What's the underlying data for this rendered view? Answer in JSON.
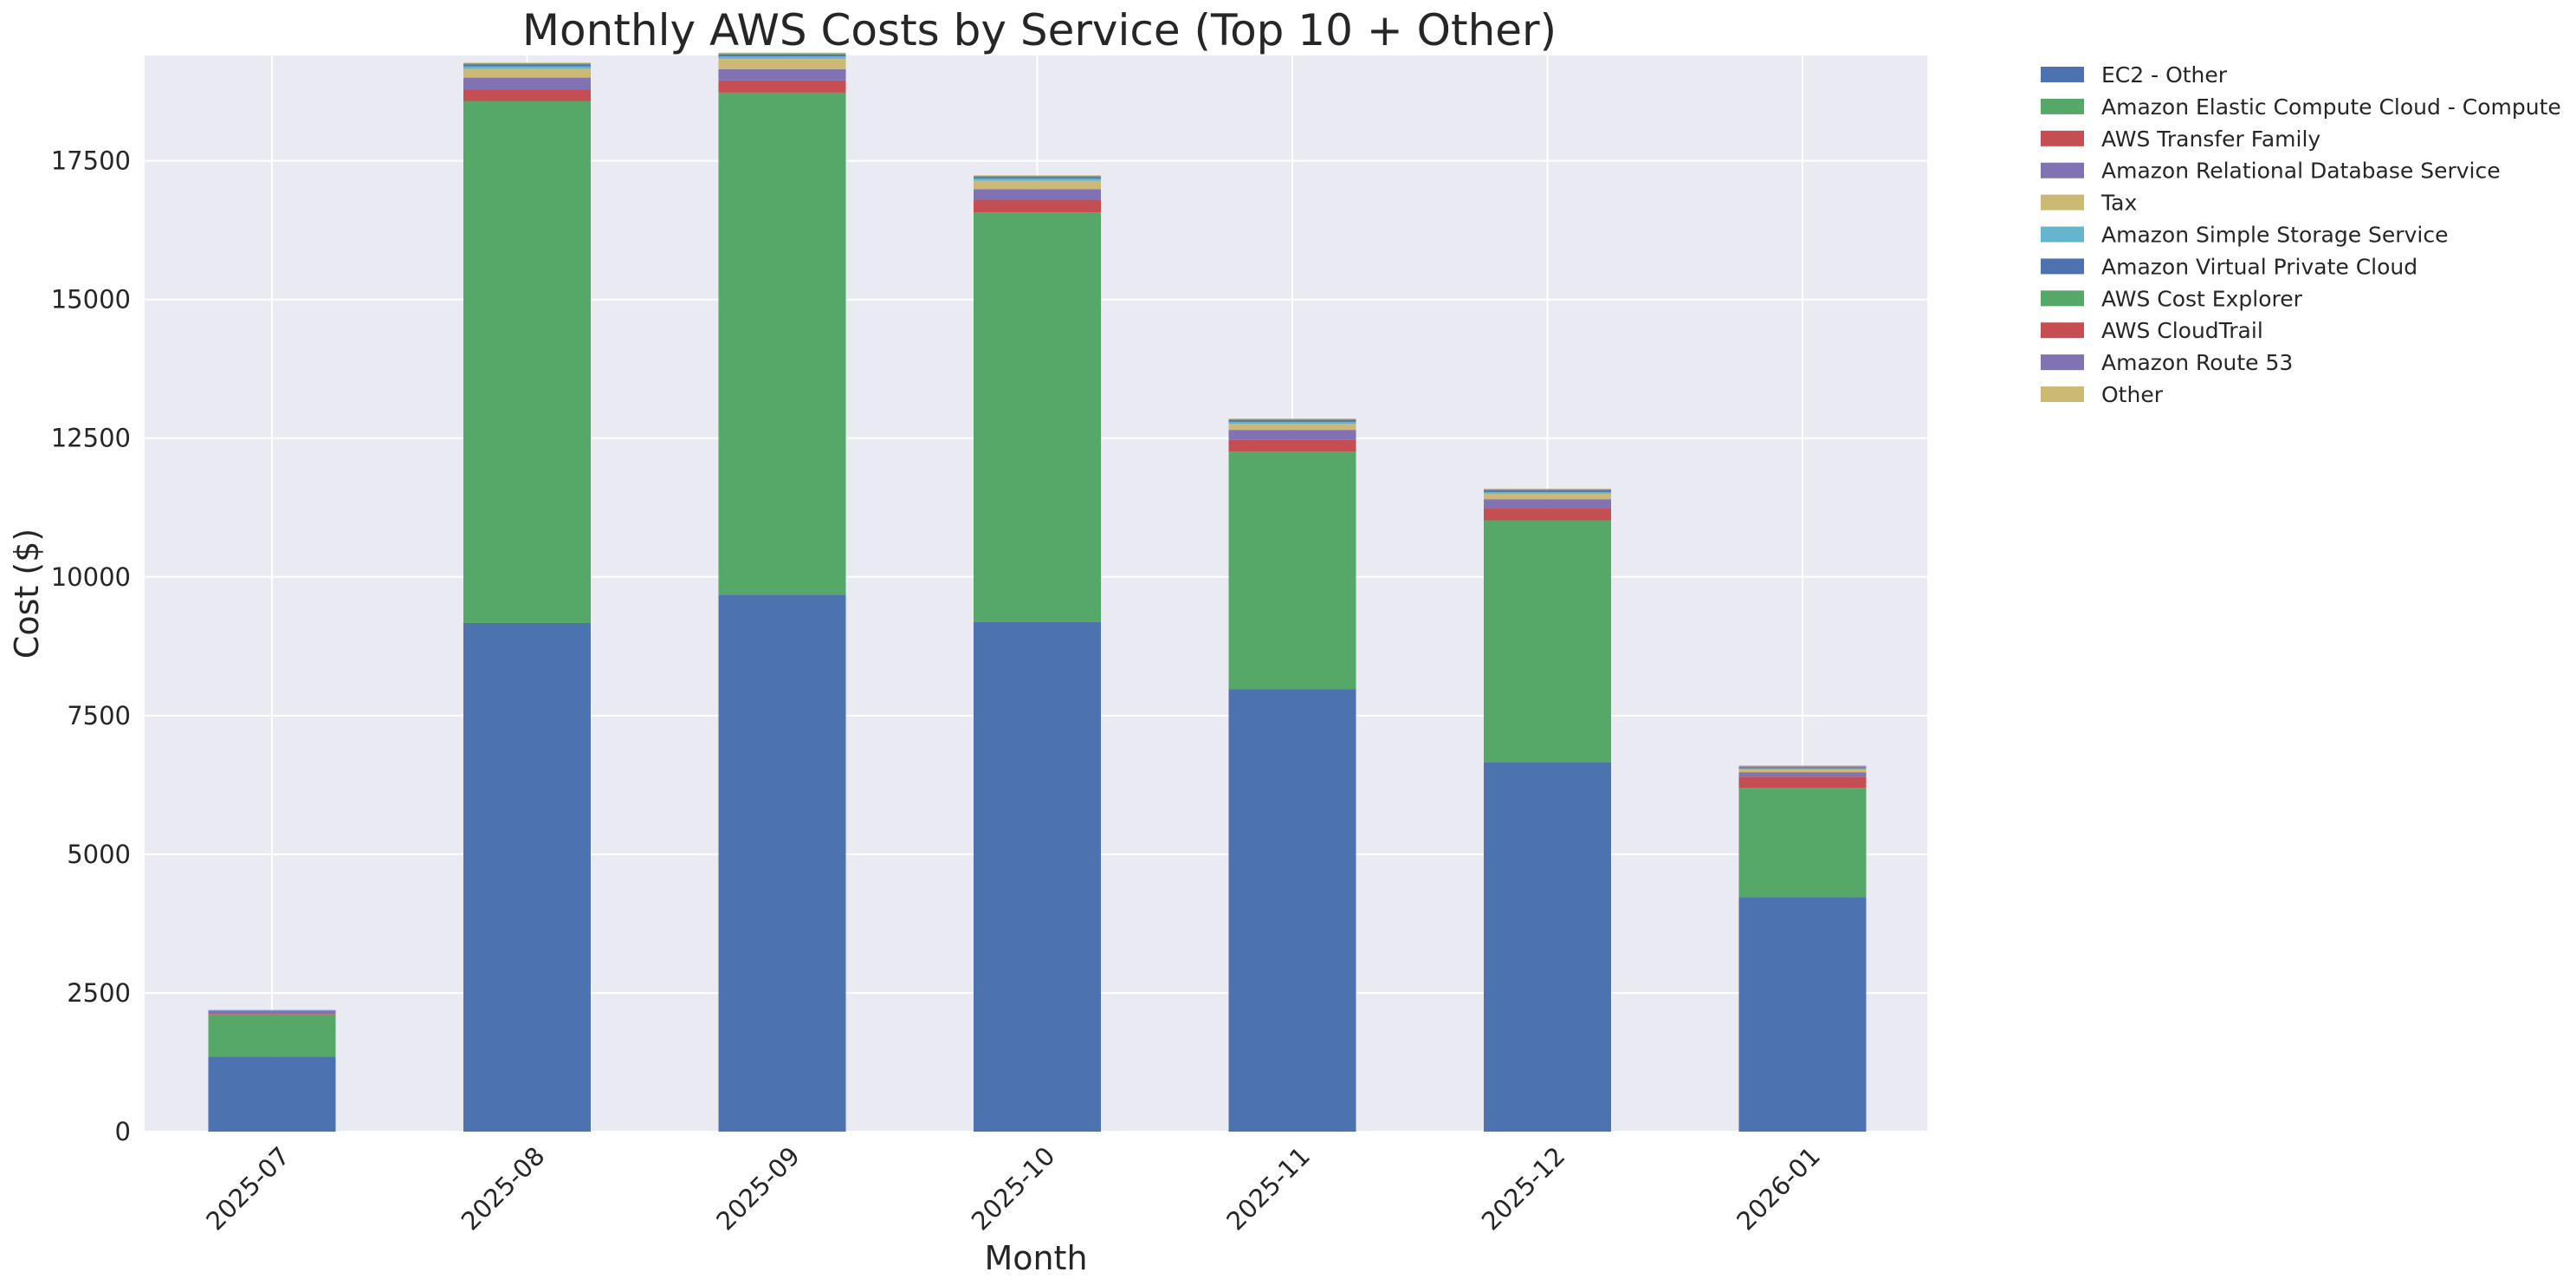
{
  "chart_data": {
    "type": "bar",
    "stacked": true,
    "title": "Monthly AWS Costs by Service (Top 10 + Other)",
    "xlabel": "Month",
    "ylabel": "Cost ($)",
    "ylim": [
      0,
      19400
    ],
    "yticks": [
      0,
      2500,
      5000,
      7500,
      10000,
      12500,
      15000,
      17500
    ],
    "grid": true,
    "legend_position": "outside-top-right",
    "background": "#eaeaf2",
    "categories": [
      "2025-07",
      "2025-08",
      "2025-09",
      "2025-10",
      "2025-11",
      "2025-12",
      "2026-01"
    ],
    "series": [
      {
        "name": "EC2 - Other",
        "color": "#4c72b0",
        "values": [
          1350,
          9170,
          9680,
          9190,
          7980,
          6660,
          4230
        ]
      },
      {
        "name": "Amazon Elastic Compute Cloud - Compute",
        "color": "#55a868",
        "values": [
          760,
          9410,
          9050,
          7380,
          4280,
          4360,
          1970
        ]
      },
      {
        "name": "AWS Transfer Family",
        "color": "#c44e52",
        "values": [
          10,
          210,
          220,
          230,
          210,
          220,
          200
        ]
      },
      {
        "name": "Amazon Relational Database Service",
        "color": "#8172b3",
        "values": [
          60,
          210,
          200,
          190,
          180,
          160,
          80
        ]
      },
      {
        "name": "Tax",
        "color": "#ccb974",
        "values": [
          0,
          160,
          190,
          150,
          110,
          100,
          50
        ]
      },
      {
        "name": "Amazon Simple Storage Service",
        "color": "#64b5cd",
        "values": [
          5,
          45,
          45,
          40,
          35,
          30,
          20
        ]
      },
      {
        "name": "Amazon Virtual Private Cloud",
        "color": "#4c72b0",
        "values": [
          5,
          35,
          35,
          30,
          30,
          30,
          20
        ]
      },
      {
        "name": "AWS Cost Explorer",
        "color": "#55a868",
        "values": [
          0,
          10,
          10,
          10,
          10,
          10,
          10
        ]
      },
      {
        "name": "AWS CloudTrail",
        "color": "#c44e52",
        "values": [
          0,
          5,
          5,
          5,
          5,
          5,
          5
        ]
      },
      {
        "name": "Amazon Route 53",
        "color": "#8172b3",
        "values": [
          2,
          5,
          5,
          5,
          5,
          5,
          5
        ]
      },
      {
        "name": "Other",
        "color": "#ccb974",
        "values": [
          3,
          10,
          10,
          10,
          10,
          10,
          10
        ]
      }
    ]
  }
}
